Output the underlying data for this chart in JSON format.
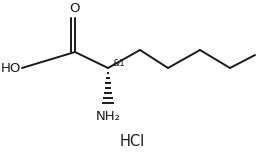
{
  "bg_color": "#ffffff",
  "line_color": "#1a1a1a",
  "text_color": "#1a1a1a",
  "hcl_text": "HCl",
  "chiral_label": "&1",
  "nh2_label": "NH₂",
  "ho_label": "HO",
  "o_label": "O",
  "fig_width": 2.64,
  "fig_height": 1.53,
  "dpi": 100
}
